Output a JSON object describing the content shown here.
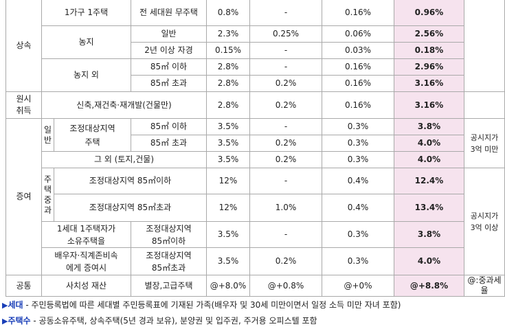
{
  "colors": {
    "highlight": "#f6e3ee",
    "note_blue": "#1a3fb8",
    "border": "#a9a9a9"
  },
  "rows": {
    "r1": {
      "section": "상속",
      "type": "1가구 1주택",
      "sub": "전 세대원 무주택",
      "acq": "0.8%",
      "farm": "-",
      "edu": "0.16%",
      "total": "0.96%"
    },
    "r2": {
      "type": "농지",
      "sub": "일반",
      "acq": "2.3%",
      "farm": "0.25%",
      "edu": "0.06%",
      "total": "2.56%"
    },
    "r3": {
      "sub": "2년 이상 자경",
      "acq": "0.15%",
      "farm": "-",
      "edu": "0.03%",
      "total": "0.18%"
    },
    "r4": {
      "type": "농지 외",
      "sub": "85㎡ 이하",
      "acq": "2.8%",
      "farm": "-",
      "edu": "0.16%",
      "total": "2.96%"
    },
    "r5": {
      "sub": "85㎡ 초과",
      "acq": "2.8%",
      "farm": "0.2%",
      "edu": "0.16%",
      "total": "3.16%"
    },
    "r6": {
      "section": "원시\n취득",
      "type": "신축,재건축·재개발(건물만)",
      "acq": "2.8%",
      "farm": "0.2%",
      "edu": "0.16%",
      "total": "3.16%"
    },
    "r7": {
      "section": "증여",
      "group": "일\n반",
      "type": "조정대상지역\n주택",
      "sub": "85㎡ 이하",
      "acq": "3.5%",
      "farm": "-",
      "edu": "0.3%",
      "total": "3.8%",
      "note": "공시지가\n3억 미만"
    },
    "r8": {
      "sub": "85㎡ 초과",
      "acq": "3.5%",
      "farm": "0.2%",
      "edu": "0.3%",
      "total": "4.0%"
    },
    "r9": {
      "type": "그 외 (토지,건물)",
      "acq": "3.5%",
      "farm": "0.2%",
      "edu": "0.3%",
      "total": "4.0%"
    },
    "r10": {
      "group": "주\n택\n중\n과",
      "type": "조정대상지역 85㎡이하",
      "acq": "12%",
      "farm": "-",
      "edu": "0.4%",
      "total": "12.4%",
      "note": "공시지가\n3억 이상"
    },
    "r11": {
      "type": "조정대상지역 85㎡초과",
      "acq": "12%",
      "farm": "1.0%",
      "edu": "0.4%",
      "total": "13.4%"
    },
    "r12": {
      "type_a": "1세대 1주택자가\n소유주택을",
      "sub": "조정대상지역\n85㎡이하",
      "acq": "3.5%",
      "farm": "-",
      "edu": "0.3%",
      "total": "3.8%"
    },
    "r13": {
      "type_b": "배우자·직계존비속\n에게 증여시",
      "sub": "조정대상지역\n85㎡초과",
      "acq": "3.5%",
      "farm": "0.2%",
      "edu": "0.3%",
      "total": "4.0%"
    },
    "r14": {
      "section": "공통",
      "type": "사치성 재산",
      "sub": "별장,고급주택",
      "acq": "@+8.0%",
      "farm": "@+0.8%",
      "edu": "@+0%",
      "total": "@+8.8%",
      "note": "@:중과세율"
    }
  },
  "notes": [
    {
      "marker": "▶",
      "term": "세대",
      "text": " - 주민등록법에 따른 세대별 주민등록표에 기재된 가족(배우자 및 30세 미만이면서 일정 소득 미만 자녀 포함)"
    },
    {
      "marker": "▶",
      "term": "주택수",
      "text": " - 공동소유주택, 상속주택(5년 경과 보유), 분양권 및 입주권, 주거용 오피스텔 포함"
    }
  ]
}
